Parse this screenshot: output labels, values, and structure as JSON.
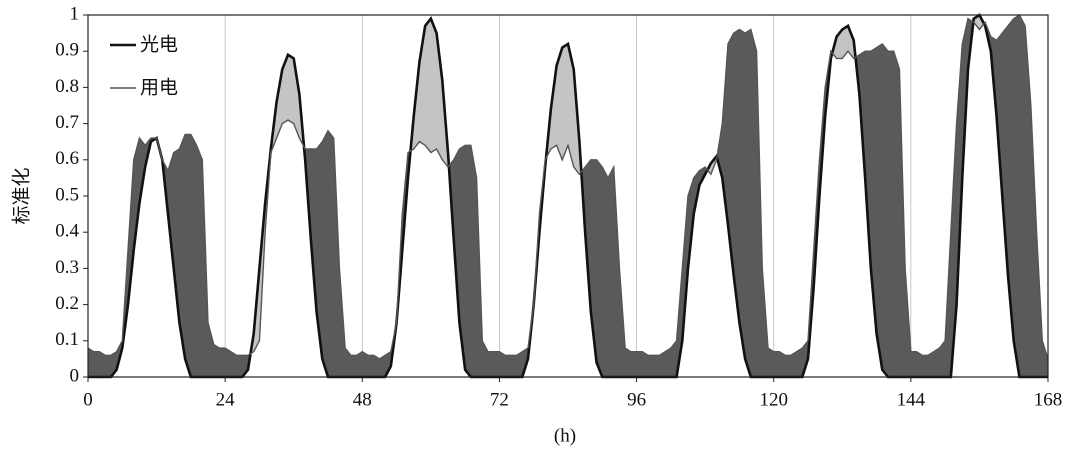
{
  "chart_data": {
    "type": "line",
    "xlabel": "(h)",
    "ylabel": "标准化",
    "x": [
      0,
      1,
      2,
      3,
      4,
      5,
      6,
      7,
      8,
      9,
      10,
      11,
      12,
      13,
      14,
      15,
      16,
      17,
      18,
      19,
      20,
      21,
      22,
      23,
      24,
      25,
      26,
      27,
      28,
      29,
      30,
      31,
      32,
      33,
      34,
      35,
      36,
      37,
      38,
      39,
      40,
      41,
      42,
      43,
      44,
      45,
      46,
      47,
      48,
      49,
      50,
      51,
      52,
      53,
      54,
      55,
      56,
      57,
      58,
      59,
      60,
      61,
      62,
      63,
      64,
      65,
      66,
      67,
      68,
      69,
      70,
      71,
      72,
      73,
      74,
      75,
      76,
      77,
      78,
      79,
      80,
      81,
      82,
      83,
      84,
      85,
      86,
      87,
      88,
      89,
      90,
      91,
      92,
      93,
      94,
      95,
      96,
      97,
      98,
      99,
      100,
      101,
      102,
      103,
      104,
      105,
      106,
      107,
      108,
      109,
      110,
      111,
      112,
      113,
      114,
      115,
      116,
      117,
      118,
      119,
      120,
      121,
      122,
      123,
      124,
      125,
      126,
      127,
      128,
      129,
      130,
      131,
      132,
      133,
      134,
      135,
      136,
      137,
      138,
      139,
      140,
      141,
      142,
      143,
      144,
      145,
      146,
      147,
      148,
      149,
      150,
      151,
      152,
      153,
      154,
      155,
      156,
      157,
      158,
      159,
      160,
      161,
      162,
      163,
      164,
      165,
      166,
      167,
      168
    ],
    "series": [
      {
        "name": "光电",
        "color": "#111111",
        "values": [
          0,
          0,
          0,
          0,
          0,
          0.02,
          0.08,
          0.2,
          0.35,
          0.48,
          0.58,
          0.65,
          0.66,
          0.6,
          0.45,
          0.3,
          0.15,
          0.05,
          0,
          0,
          0,
          0,
          0,
          0,
          0,
          0,
          0,
          0,
          0.02,
          0.12,
          0.3,
          0.48,
          0.63,
          0.76,
          0.85,
          0.89,
          0.88,
          0.78,
          0.6,
          0.38,
          0.18,
          0.05,
          0,
          0,
          0,
          0,
          0,
          0,
          0,
          0,
          0,
          0,
          0,
          0.03,
          0.15,
          0.35,
          0.55,
          0.72,
          0.87,
          0.97,
          0.99,
          0.95,
          0.82,
          0.62,
          0.38,
          0.15,
          0.02,
          0,
          0,
          0,
          0,
          0,
          0,
          0,
          0,
          0,
          0,
          0.05,
          0.2,
          0.4,
          0.58,
          0.74,
          0.86,
          0.91,
          0.92,
          0.85,
          0.65,
          0.4,
          0.18,
          0.04,
          0,
          0,
          0,
          0,
          0,
          0,
          0,
          0,
          0,
          0,
          0,
          0,
          0,
          0,
          0.1,
          0.3,
          0.45,
          0.53,
          0.56,
          0.59,
          0.61,
          0.55,
          0.42,
          0.28,
          0.15,
          0.05,
          0,
          0,
          0,
          0,
          0,
          0,
          0,
          0,
          0,
          0,
          0.05,
          0.25,
          0.5,
          0.72,
          0.88,
          0.94,
          0.96,
          0.97,
          0.93,
          0.78,
          0.55,
          0.3,
          0.12,
          0.02,
          0,
          0,
          0,
          0,
          0,
          0,
          0,
          0,
          0,
          0,
          0,
          0,
          0.2,
          0.55,
          0.85,
          0.99,
          1,
          0.97,
          0.9,
          0.72,
          0.5,
          0.28,
          0.1,
          0,
          0,
          0,
          0,
          0,
          0
        ]
      },
      {
        "name": "用电",
        "color": "#555555",
        "values": [
          0.08,
          0.07,
          0.07,
          0.06,
          0.06,
          0.07,
          0.1,
          0.35,
          0.6,
          0.66,
          0.64,
          0.66,
          0.66,
          0.6,
          0.57,
          0.62,
          0.63,
          0.67,
          0.67,
          0.64,
          0.6,
          0.15,
          0.09,
          0.08,
          0.08,
          0.07,
          0.06,
          0.06,
          0.06,
          0.07,
          0.1,
          0.4,
          0.62,
          0.66,
          0.7,
          0.71,
          0.7,
          0.66,
          0.63,
          0.63,
          0.63,
          0.65,
          0.68,
          0.66,
          0.3,
          0.08,
          0.06,
          0.06,
          0.07,
          0.06,
          0.06,
          0.05,
          0.06,
          0.07,
          0.15,
          0.45,
          0.62,
          0.63,
          0.65,
          0.64,
          0.62,
          0.63,
          0.6,
          0.58,
          0.6,
          0.63,
          0.64,
          0.64,
          0.55,
          0.1,
          0.07,
          0.07,
          0.07,
          0.06,
          0.06,
          0.06,
          0.07,
          0.08,
          0.2,
          0.45,
          0.6,
          0.63,
          0.64,
          0.6,
          0.64,
          0.58,
          0.56,
          0.58,
          0.6,
          0.6,
          0.58,
          0.55,
          0.58,
          0.3,
          0.08,
          0.07,
          0.07,
          0.07,
          0.06,
          0.06,
          0.06,
          0.07,
          0.08,
          0.1,
          0.3,
          0.5,
          0.55,
          0.57,
          0.58,
          0.56,
          0.6,
          0.7,
          0.92,
          0.95,
          0.96,
          0.95,
          0.96,
          0.9,
          0.3,
          0.08,
          0.07,
          0.07,
          0.06,
          0.06,
          0.07,
          0.08,
          0.1,
          0.35,
          0.6,
          0.8,
          0.9,
          0.88,
          0.88,
          0.9,
          0.88,
          0.89,
          0.9,
          0.9,
          0.91,
          0.92,
          0.9,
          0.9,
          0.85,
          0.3,
          0.07,
          0.07,
          0.06,
          0.06,
          0.07,
          0.08,
          0.1,
          0.4,
          0.7,
          0.92,
          0.99,
          0.98,
          0.96,
          0.98,
          0.94,
          0.93,
          0.95,
          0.97,
          0.99,
          1,
          0.97,
          0.75,
          0.4,
          0.1,
          0.05
        ]
      }
    ],
    "xlim": [
      0,
      168
    ],
    "xticks": [
      0,
      24,
      48,
      72,
      96,
      120,
      144,
      168
    ],
    "ylim": [
      0,
      1
    ],
    "yticks": [
      0,
      0.1,
      0.2,
      0.3,
      0.4,
      0.5,
      0.6,
      0.7,
      0.8,
      0.9,
      1
    ],
    "grid": true,
    "legend": "upper left"
  }
}
